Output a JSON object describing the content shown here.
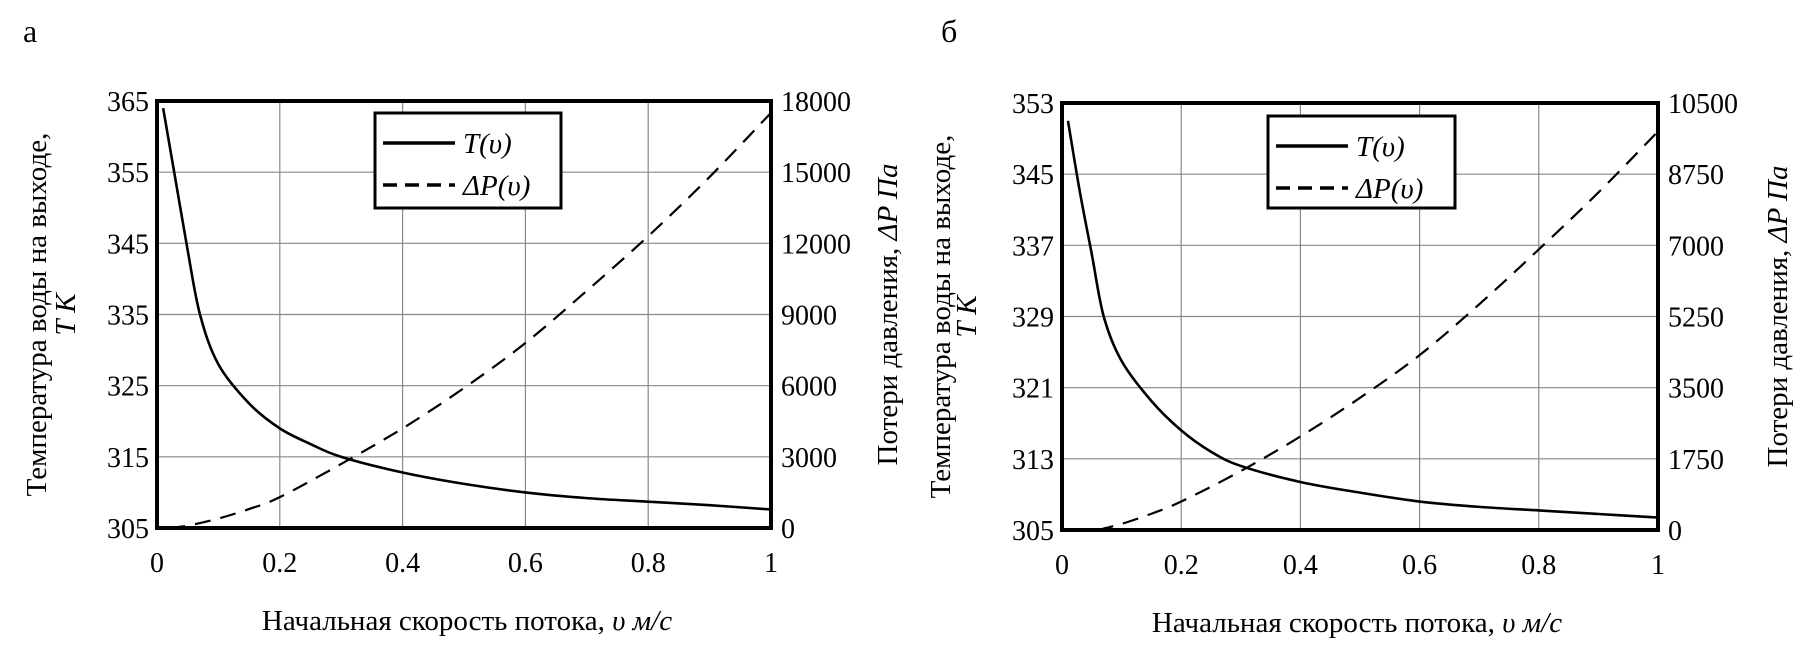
{
  "chart_data": [
    {
      "type": "line",
      "panel_label": "а",
      "xlabel": "Начальная скорость потока,",
      "xlabel_unit": "υ м/с",
      "ylabel": "Температура воды на выходе,",
      "ylabel_unit": "T K",
      "y2label": "Потери давления,",
      "y2label_unit": "ΔP Па",
      "xlim": [
        0,
        1
      ],
      "ylim": [
        305,
        365
      ],
      "y2lim": [
        0,
        18000
      ],
      "xticks": [
        "0",
        "0.2",
        "0.4",
        "0.6",
        "0.8",
        "1"
      ],
      "yticks": [
        "305",
        "315",
        "325",
        "335",
        "345",
        "355",
        "365"
      ],
      "y2ticks": [
        "0",
        "3000",
        "6000",
        "9000",
        "12000",
        "15000",
        "18000"
      ],
      "grid": true,
      "legend_position": "top-center",
      "series": [
        {
          "name": "T(υ)",
          "axis": "left",
          "style": "solid",
          "x": [
            0.01,
            0.03,
            0.05,
            0.07,
            0.1,
            0.15,
            0.2,
            0.25,
            0.3,
            0.4,
            0.5,
            0.6,
            0.7,
            0.8,
            0.9,
            1.0
          ],
          "y": [
            364,
            354,
            344,
            335,
            328,
            322.5,
            319,
            316.8,
            315,
            312.8,
            311.2,
            310,
            309.2,
            308.7,
            308.2,
            307.6
          ]
        },
        {
          "name": "ΔP(υ)",
          "axis": "right",
          "style": "dashed",
          "x": [
            0.02,
            0.05,
            0.1,
            0.15,
            0.2,
            0.3,
            0.4,
            0.5,
            0.6,
            0.7,
            0.8,
            0.9,
            1.0
          ],
          "y": [
            0,
            100,
            400,
            800,
            1300,
            2700,
            4200,
            5900,
            7800,
            10000,
            12300,
            14800,
            17500
          ]
        }
      ]
    },
    {
      "type": "line",
      "panel_label": "б",
      "xlabel": "Начальная скорость потока,",
      "xlabel_unit": "υ м/с",
      "ylabel": "Температура воды на выходе,",
      "ylabel_unit": "T K",
      "y2label": "Потери давления,",
      "y2label_unit": "ΔP Па",
      "xlim": [
        0,
        1
      ],
      "ylim": [
        305,
        353
      ],
      "y2lim": [
        0,
        10500
      ],
      "xticks": [
        "0",
        "0.2",
        "0.4",
        "0.6",
        "0.8",
        "1"
      ],
      "yticks": [
        "305",
        "313",
        "321",
        "329",
        "337",
        "345",
        "353"
      ],
      "y2ticks": [
        "0",
        "1750",
        "3500",
        "5250",
        "7000",
        "8750",
        "10500"
      ],
      "grid": true,
      "legend_position": "top-center",
      "series": [
        {
          "name": "T(υ)",
          "axis": "left",
          "style": "solid",
          "x": [
            0.01,
            0.03,
            0.05,
            0.07,
            0.1,
            0.15,
            0.2,
            0.25,
            0.3,
            0.4,
            0.5,
            0.6,
            0.7,
            0.8,
            0.9,
            1.0
          ],
          "y": [
            351,
            343,
            336,
            329,
            324,
            319.5,
            316.2,
            313.8,
            312.2,
            310.4,
            309.2,
            308.2,
            307.6,
            307.2,
            306.8,
            306.4
          ]
        },
        {
          "name": "ΔP(υ)",
          "axis": "right",
          "style": "dashed",
          "x": [
            0.06,
            0.1,
            0.15,
            0.2,
            0.3,
            0.4,
            0.5,
            0.6,
            0.7,
            0.8,
            0.9,
            1.0
          ],
          "y": [
            0,
            150,
            400,
            700,
            1450,
            2300,
            3250,
            4300,
            5550,
            6900,
            8300,
            9800
          ]
        }
      ]
    }
  ]
}
